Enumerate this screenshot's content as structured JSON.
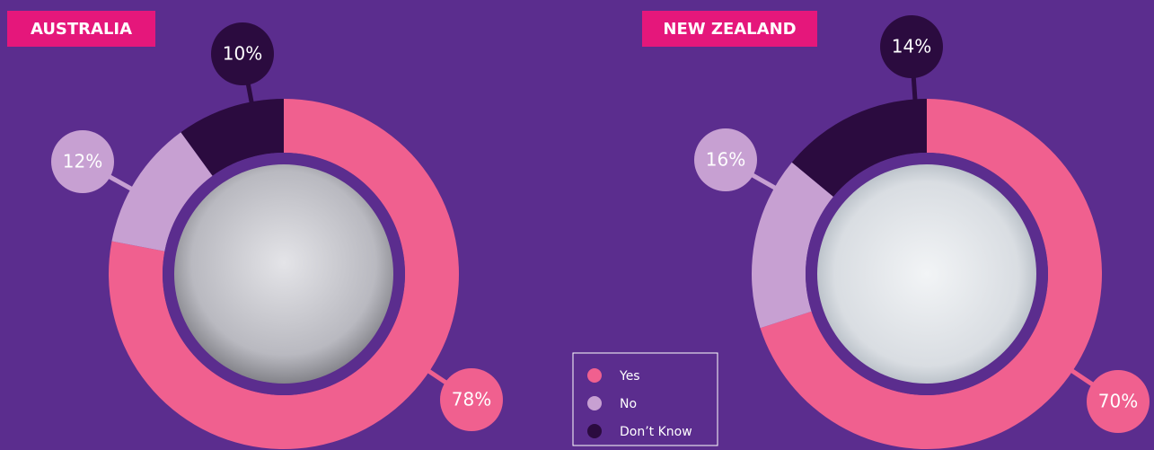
{
  "legend": {
    "categories": [
      "Yes",
      "No",
      "Don’t Know"
    ],
    "colors": [
      "#f0608f",
      "#c7a0d2",
      "#2b0b3f"
    ]
  },
  "chart_data": [
    {
      "type": "pie",
      "title": "AUSTRALIA",
      "values": [
        78,
        12,
        10
      ],
      "value_labels": [
        "78%",
        "12%",
        "10%"
      ]
    },
    {
      "type": "pie",
      "title": "NEW ZEALAND",
      "values": [
        70,
        16,
        14
      ],
      "value_labels": [
        "70%",
        "16%",
        "14%"
      ]
    }
  ]
}
